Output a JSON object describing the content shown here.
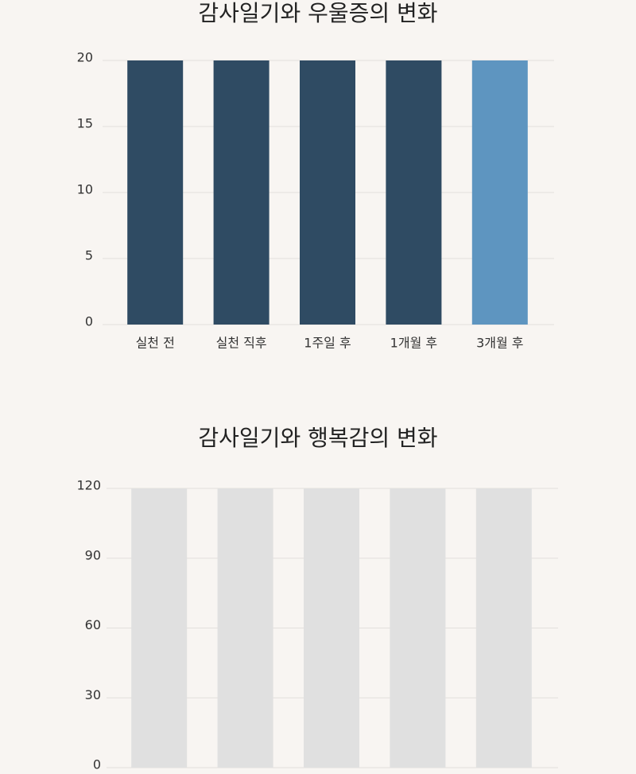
{
  "chart_data": [
    {
      "type": "bar",
      "title": "감사일기와 우울증의 변화",
      "categories": [
        "실천 전",
        "실천 직후",
        "1주일 후",
        "1개월 후",
        "3개월 후"
      ],
      "values": [
        20,
        20,
        20,
        20,
        20
      ],
      "colors": [
        "#2f4b63",
        "#2f4b63",
        "#2f4b63",
        "#2f4b63",
        "#5e95c0"
      ],
      "ylim": [
        0,
        20
      ],
      "yticks": [
        0,
        5,
        10,
        15,
        20
      ],
      "grid": true
    },
    {
      "type": "bar",
      "title": "감사일기와 행복감의 변화",
      "categories": [
        null,
        null,
        null,
        null,
        null
      ],
      "values": [
        120,
        120,
        120,
        120,
        120
      ],
      "colors": [
        "#e0e0e0",
        "#e0e0e0",
        "#e0e0e0",
        "#e0e0e0",
        "#e0e0e0"
      ],
      "ylim": [
        0,
        120
      ],
      "yticks": [
        0,
        30,
        60,
        90,
        120
      ],
      "grid": true
    }
  ]
}
